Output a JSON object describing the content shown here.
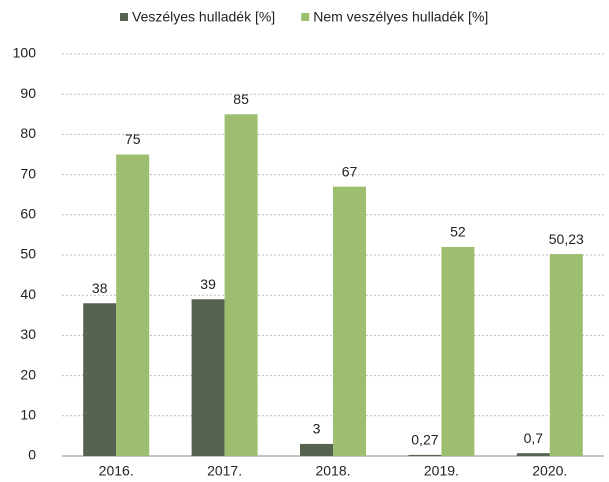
{
  "chart_data": {
    "type": "bar",
    "categories": [
      "2016.",
      "2017.",
      "2018.",
      "2019.",
      "2020."
    ],
    "series": [
      {
        "name": "Veszélyes hulladék [%]",
        "color": "#55634f",
        "values": [
          38,
          39,
          3,
          0.27,
          0.7
        ],
        "value_labels": [
          "38",
          "39",
          "3",
          "0,27",
          "0,7"
        ]
      },
      {
        "name": "Nem veszélyes hulladék [%]",
        "color": "#9dbd6f",
        "values": [
          75,
          85,
          67,
          52,
          50.23
        ],
        "value_labels": [
          "75",
          "85",
          "67",
          "52",
          "50,23"
        ]
      }
    ],
    "ylim": [
      0,
      100
    ],
    "yticks": [
      0,
      10,
      20,
      30,
      40,
      50,
      60,
      70,
      80,
      90,
      100
    ],
    "grid": true,
    "legend": "top"
  }
}
